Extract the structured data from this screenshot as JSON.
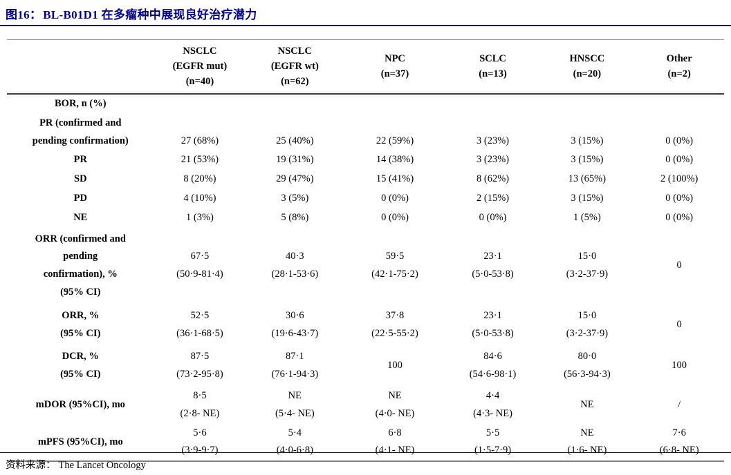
{
  "theme": {
    "title_color": "#00008B",
    "title_rule_color": "#14147a",
    "table_top_rule_color": "#8c8c8c",
    "header_rule_color": "#3d3d3d",
    "table_bottom_rule_color": "#808080",
    "footer_rule_color": "#1a1a1a",
    "text_color": "#000000",
    "background": "#ffffff"
  },
  "header": {
    "figure_label": "图16：",
    "title": "BL-B01D1 在多瘤种中展现良好治疗潜力"
  },
  "table": {
    "columns": [
      {
        "id": "metric",
        "lines": []
      },
      {
        "id": "nsclc-egfr-mut",
        "lines": [
          "NSCLC",
          "(EGFR mut)",
          "(n=40)"
        ]
      },
      {
        "id": "nsclc-egfr-wt",
        "lines": [
          "NSCLC",
          "(EGFR wt)",
          "(n=62)"
        ]
      },
      {
        "id": "npc",
        "lines": [
          "NPC",
          "(n=37)"
        ]
      },
      {
        "id": "sclc",
        "lines": [
          "SCLC",
          "(n=13)"
        ]
      },
      {
        "id": "hnscc",
        "lines": [
          "HNSCC",
          "(n=20)"
        ]
      },
      {
        "id": "other",
        "lines": [
          "Other",
          "(n=2)"
        ]
      }
    ],
    "rows": [
      {
        "id": "bor",
        "label_lines": [
          "BOR, n (%)"
        ],
        "cells": [
          [],
          [],
          [],
          [],
          [],
          []
        ]
      },
      {
        "id": "pr-confirmed-pending",
        "label_lines": [
          "PR (confirmed and",
          "pending confirmation)"
        ],
        "valign": "bottom",
        "cells": [
          [
            "27 (68%)"
          ],
          [
            "25 (40%)"
          ],
          [
            "22 (59%)"
          ],
          [
            "3 (23%)"
          ],
          [
            "3 (15%)"
          ],
          [
            "0 (0%)"
          ]
        ]
      },
      {
        "id": "pr",
        "label_lines": [
          "PR"
        ],
        "cells": [
          [
            "21 (53%)"
          ],
          [
            "19 (31%)"
          ],
          [
            "14 (38%)"
          ],
          [
            "3 (23%)"
          ],
          [
            "3 (15%)"
          ],
          [
            "0 (0%)"
          ]
        ]
      },
      {
        "id": "sd",
        "label_lines": [
          "SD"
        ],
        "cells": [
          [
            "8 (20%)"
          ],
          [
            "29 (47%)"
          ],
          [
            "15 (41%)"
          ],
          [
            "8 (62%)"
          ],
          [
            "13 (65%)"
          ],
          [
            "2 (100%)"
          ]
        ]
      },
      {
        "id": "pd",
        "label_lines": [
          "PD"
        ],
        "cells": [
          [
            "4 (10%)"
          ],
          [
            "3 (5%)"
          ],
          [
            "0 (0%)"
          ],
          [
            "2 (15%)"
          ],
          [
            "3 (15%)"
          ],
          [
            "0 (0%)"
          ]
        ]
      },
      {
        "id": "ne",
        "label_lines": [
          "NE"
        ],
        "cells": [
          [
            "1 (3%)"
          ],
          [
            "5 (8%)"
          ],
          [
            "0 (0%)"
          ],
          [
            "0 (0%)"
          ],
          [
            "1 (5%)"
          ],
          [
            "0 (0%)"
          ]
        ]
      },
      {
        "id": "orr-confirmed-pending",
        "label_lines": [
          "ORR (confirmed and",
          "pending",
          "confirmation), %",
          "(95% CI)"
        ],
        "tall": true,
        "cells": [
          [
            "67·5",
            "(50·9-81·4)"
          ],
          [
            "40·3",
            "(28·1-53·6)"
          ],
          [
            "59·5",
            "(42·1-75·2)"
          ],
          [
            "23·1",
            "(5·0-53·8)"
          ],
          [
            "15·0",
            "(3·2-37·9)"
          ],
          [
            "0"
          ]
        ]
      },
      {
        "id": "orr",
        "label_lines": [
          "ORR, %",
          "(95% CI)"
        ],
        "tall": true,
        "cells": [
          [
            "52·5",
            "(36·1-68·5)"
          ],
          [
            "30·6",
            "(19·6-43·7)"
          ],
          [
            "37·8",
            "(22·5-55·2)"
          ],
          [
            "23·1",
            "(5·0-53·8)"
          ],
          [
            "15·0",
            "(3·2-37·9)"
          ],
          [
            "0"
          ]
        ]
      },
      {
        "id": "dcr",
        "label_lines": [
          "DCR, %",
          "(95% CI)"
        ],
        "tall": true,
        "cells": [
          [
            "87·5",
            "(73·2-95·8)"
          ],
          [
            "87·1",
            "(76·1-94·3)"
          ],
          [
            "100"
          ],
          [
            "84·6",
            "(54·6-98·1)"
          ],
          [
            "80·0",
            "(56·3-94·3)"
          ],
          [
            "100"
          ]
        ]
      },
      {
        "id": "mdor",
        "label_lines": [
          "mDOR (95%CI), mo"
        ],
        "cells": [
          [
            "8·5",
            "(2·8- NE)"
          ],
          [
            "NE",
            "(5·4- NE)"
          ],
          [
            "NE",
            "(4·0- NE)"
          ],
          [
            "4·4",
            "(4·3- NE)"
          ],
          [
            "NE"
          ],
          [
            "/"
          ]
        ]
      },
      {
        "id": "mpfs",
        "label_lines": [
          "mPFS (95%CI), mo"
        ],
        "cells": [
          [
            "5·6",
            "(3·9-9·7)"
          ],
          [
            "5·4",
            "(4·0-6·8)"
          ],
          [
            "6·8",
            "(4·1- NE)"
          ],
          [
            "5·5",
            "(1·5-7·9)"
          ],
          [
            "NE",
            "(1·6- NE)"
          ],
          [
            "7·6",
            "(6·8- NE)"
          ]
        ]
      }
    ]
  },
  "footer": {
    "source_label": "资料来源：",
    "source_value": "The Lancet Oncology"
  }
}
